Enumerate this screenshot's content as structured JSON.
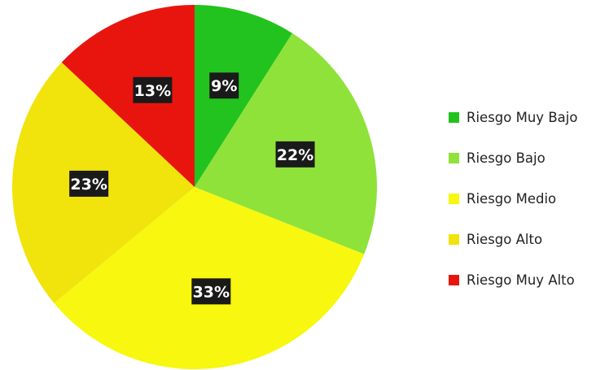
{
  "chart_data": {
    "type": "pie",
    "title": "",
    "legend_position": "right",
    "slices": [
      {
        "label": "Riesgo Muy Bajo",
        "value": 9,
        "value_label": "9%",
        "color": "#22c31e"
      },
      {
        "label": "Riesgo Bajo",
        "value": 22,
        "value_label": "22%",
        "color": "#8fe23a"
      },
      {
        "label": "Riesgo Medio",
        "value": 33,
        "value_label": "33%",
        "color": "#f7f70f"
      },
      {
        "label": "Riesgo Alto",
        "value": 23,
        "value_label": "23%",
        "color": "#f1e30c"
      },
      {
        "label": "Riesgo Muy Alto",
        "value": 13,
        "value_label": "13%",
        "color": "#e8150f"
      }
    ]
  }
}
